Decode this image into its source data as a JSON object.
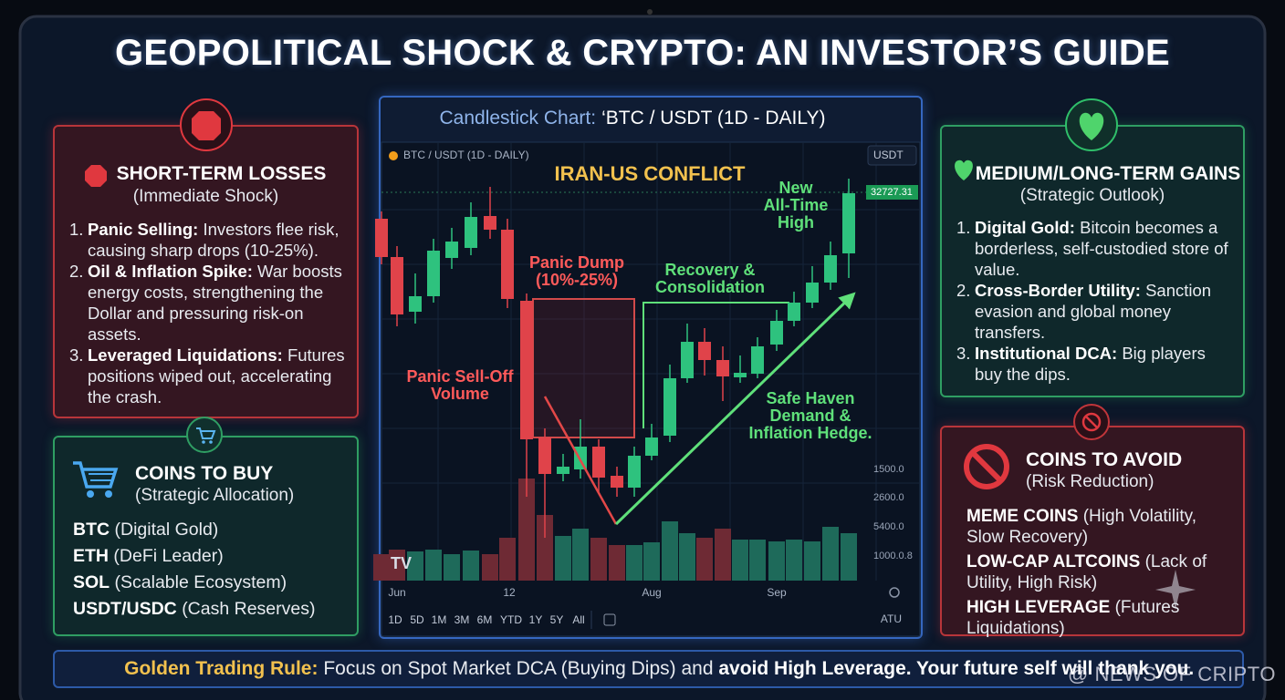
{
  "title": "GEOPOLITICAL SHOCK & CRYPTO: AN INVESTOR’S GUIDE",
  "short_term_losses": {
    "heading": "SHORT-TERM LOSSES",
    "subtitle": "(Immediate Shock)",
    "items": [
      {
        "num": "1.",
        "term": "Panic Selling:",
        "text": "Investors flee risk, causing sharp drops (10-25%)."
      },
      {
        "num": "2.",
        "term": "Oil & Inflation Spike:",
        "text": "War boosts energy costs, strengthening the Dollar and pressuring risk-on assets."
      },
      {
        "num": "3.",
        "term": "Leveraged Liquidations:",
        "text": "Futures positions wiped out, accelerating the crash."
      }
    ]
  },
  "coins_to_buy": {
    "heading": "COINS TO BUY",
    "subtitle": "(Strategic Allocation)",
    "items": [
      {
        "term": "BTC",
        "text": "(Digital Gold)"
      },
      {
        "term": "ETH",
        "text": "(DeFi Leader)"
      },
      {
        "term": "SOL",
        "text": "(Scalable Ecosystem)"
      },
      {
        "term": "USDT/USDC",
        "text": "(Cash Reserves)"
      }
    ]
  },
  "chart": {
    "header_label": "Candlestick Chart:",
    "header_value": "‘BTC / USDT (1D - DAILY)",
    "symbol": "BTC / USDT (1D - DAILY)",
    "currency": "USDT",
    "event": "IRAN-US CONFLICT",
    "price_tag": "32727.31",
    "annotations": {
      "ath": "New All-Time High",
      "dump": "Panic Dump (10%-25%)",
      "recovery": "Recovery & Consolidation",
      "volume": "Panic Sell-Off Volume",
      "haven": "Safe Haven Demand & Inflation Hedge."
    },
    "y_labels": [
      "1500.0",
      "2600.0",
      "5400.0",
      "1000.0.8"
    ],
    "x_labels": [
      "Jun",
      "12",
      "Aug",
      "Sep"
    ],
    "timeframes": [
      "1D",
      "5D",
      "1M",
      "3M",
      "6M",
      "YTD",
      "1Y",
      "5Y",
      "All"
    ],
    "corner": "ATU"
  },
  "long_term_gains": {
    "heading": "MEDIUM/LONG-TERM GAINS",
    "subtitle": "(Strategic Outlook)",
    "items": [
      {
        "num": "1.",
        "term": "Digital Gold:",
        "text": "Bitcoin becomes a borderless, self-custodied store of value."
      },
      {
        "num": "2.",
        "term": "Cross-Border Utility:",
        "text": "Sanction evasion and global money transfers."
      },
      {
        "num": "3.",
        "term": "Institutional DCA:",
        "text": "Big players buy the dips."
      }
    ]
  },
  "coins_to_avoid": {
    "heading": "COINS TO AVOID",
    "subtitle": "(Risk Reduction)",
    "items": [
      {
        "term": "MEME COINS",
        "text": "(High Volatility, Slow Recovery)"
      },
      {
        "term": "LOW-CAP ALTCOINS",
        "text": "(Lack of Utility, High Risk)"
      },
      {
        "term": "HIGH LEVERAGE",
        "text": "(Futures Liquidations)"
      }
    ]
  },
  "footer": {
    "label": "Golden Trading Rule:",
    "text": "Focus on Spot Market DCA (Buying Dips) and",
    "emphasis": "avoid High Leverage. Your future self will thank you."
  },
  "watermark": "@ NEWS OF CRIPTO"
}
